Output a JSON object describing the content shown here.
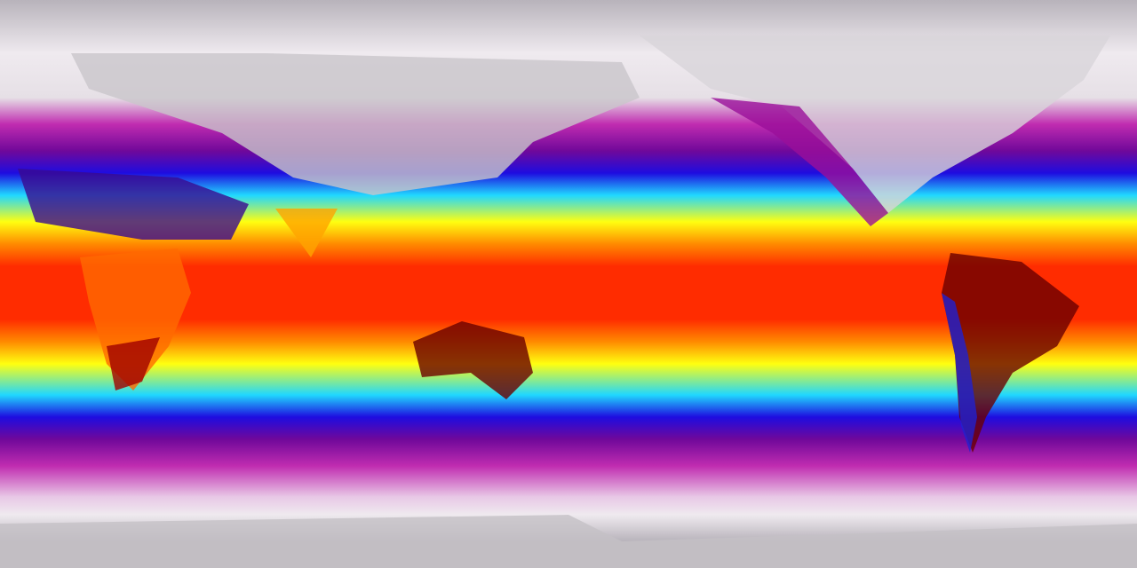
{
  "map": {
    "projection": "equirectangular",
    "colormap": [
      "#b4afb8",
      "#f3eef3",
      "#d23fc0",
      "#8a0aa0",
      "#2a0ad8",
      "#00c8ff",
      "#7fffd0",
      "#ffff00",
      "#ffa000",
      "#ff2800",
      "#c80000",
      "#3a0000"
    ],
    "palette": {
      "polar": "#b8b3bb",
      "snow": "#efeaef",
      "magenta": "#c02cb0",
      "purple": "#70089a",
      "blue": "#1e0ce0",
      "cyan": "#20d8ff",
      "yellow": "#ffff10",
      "orange": "#ff8a00",
      "red": "#ff2c00",
      "darkred": "#5a0000"
    }
  }
}
